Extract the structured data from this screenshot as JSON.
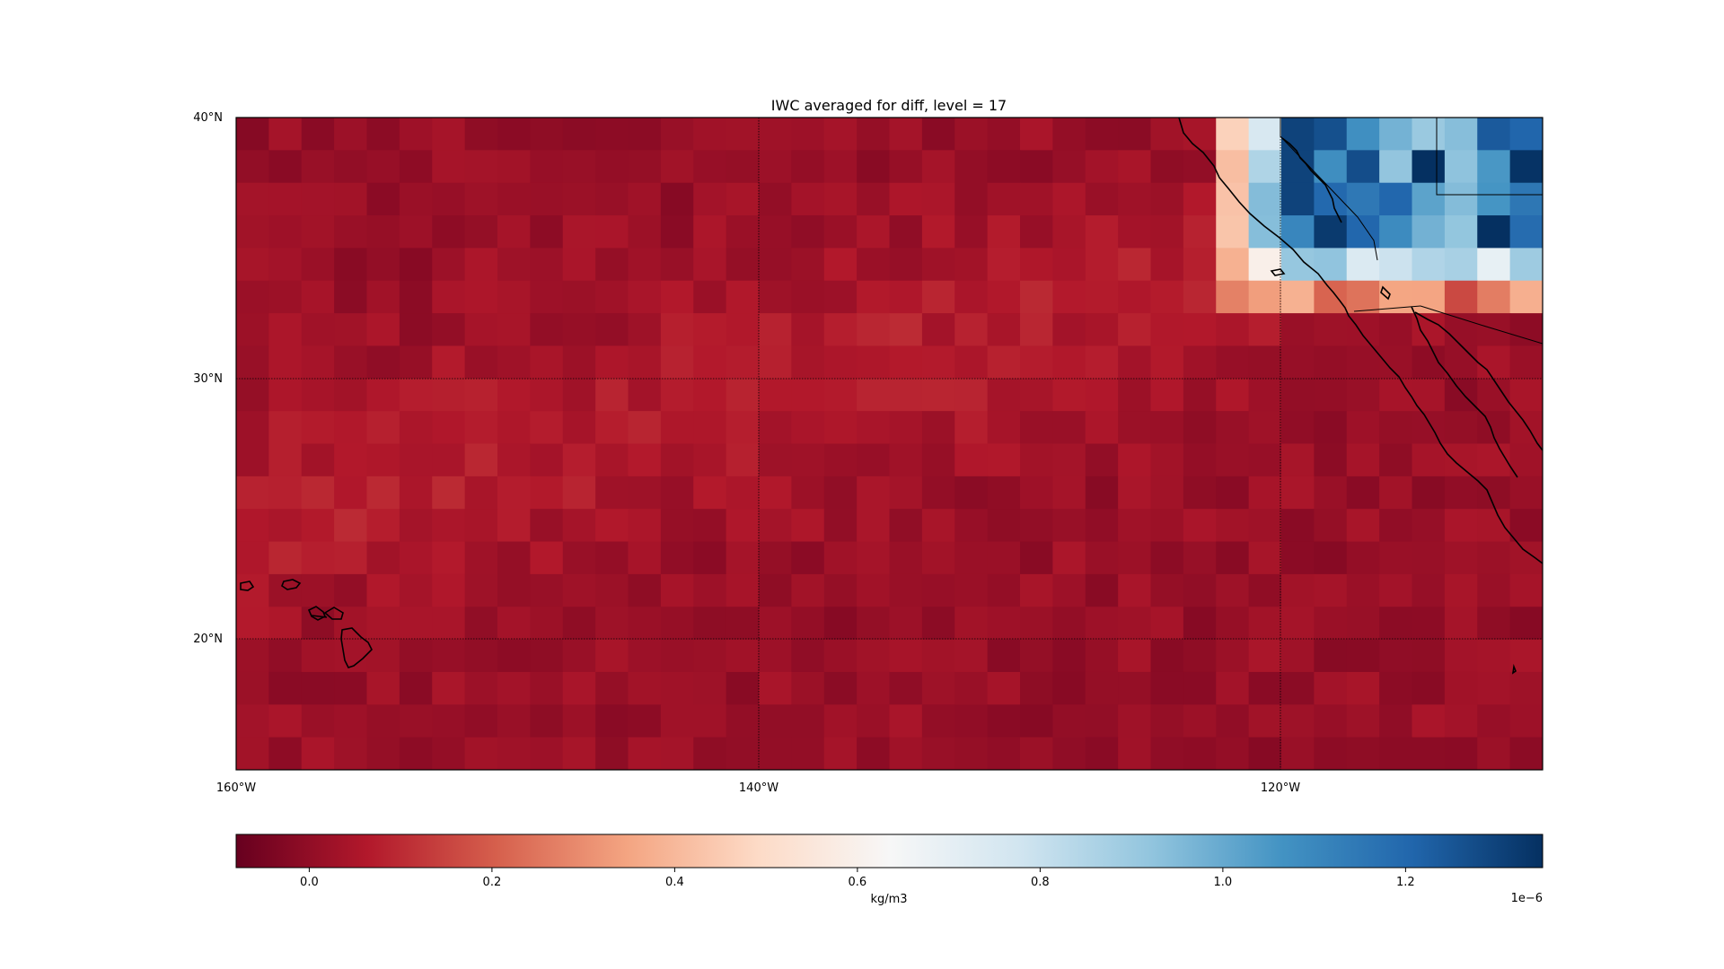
{
  "title": "IWC averaged for diff, level = 17",
  "map": {
    "lat_range": [
      15,
      40
    ],
    "lon_range": [
      -160,
      -110
    ],
    "grid_resolution_deg": 1.25,
    "lat_labels": [
      {
        "text": "40°N",
        "lat": 40
      },
      {
        "text": "30°N",
        "lat": 30
      },
      {
        "text": "20°N",
        "lat": 20
      }
    ],
    "lon_labels": [
      {
        "text": "160°W",
        "lon": -160
      },
      {
        "text": "140°W",
        "lon": -140
      },
      {
        "text": "120°W",
        "lon": -120
      }
    ],
    "gridlines": {
      "lat": [
        30,
        20
      ],
      "lon": [
        -140,
        -120
      ]
    },
    "field_description": "negative/near-zero values (dark red) almost everywhere; positive values (light to dark blue) off the California coast north of ~33°N and east of ~122°W"
  },
  "colorbar": {
    "colormap": "RdBu",
    "vmin": -0.08,
    "vmax": 1.35,
    "ticks": [
      {
        "text": "0.0",
        "value": 0.0
      },
      {
        "text": "0.2",
        "value": 0.2
      },
      {
        "text": "0.4",
        "value": 0.4
      },
      {
        "text": "0.6",
        "value": 0.6
      },
      {
        "text": "0.8",
        "value": 0.8
      },
      {
        "text": "1.0",
        "value": 1.0
      },
      {
        "text": "1.2",
        "value": 1.2
      }
    ],
    "label": "kg/m3",
    "scale_label": "1e−6"
  }
}
